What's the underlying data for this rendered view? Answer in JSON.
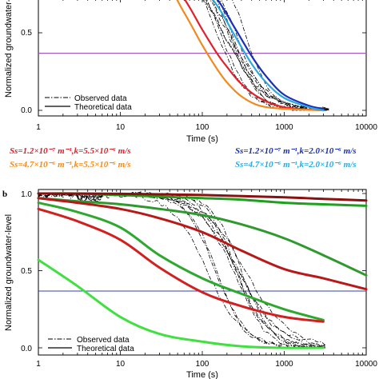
{
  "chart_data": [
    {
      "type": "line",
      "panel": "",
      "xlabel": "Time (s)",
      "ylabel": "Normalized groundwater-level",
      "xscale": "log",
      "xlim": [
        1,
        10000
      ],
      "ylim": [
        0,
        1
      ],
      "x_ticks": [
        "1",
        "10",
        "100",
        "1000",
        "10000"
      ],
      "y_ticks": [
        "0.0",
        "0.5"
      ],
      "reference_line": {
        "y": 0.368,
        "color": "#a05ab4"
      },
      "legend": {
        "placement": "bottom-left",
        "entries": [
          {
            "label": "Observed data",
            "style": "dash-dot"
          },
          {
            "label": "Theoretical data",
            "style": "solid"
          }
        ]
      },
      "observed_color": "#000000",
      "series": [
        {
          "name": "Ss=1.2×10⁻⁷ m⁻¹,k=5.5×10⁻⁶ m/s",
          "color": "#e0202a",
          "x": [
            10,
            30,
            60,
            100,
            150,
            200,
            300,
            500,
            1000,
            3000
          ],
          "y": [
            1.0,
            0.92,
            0.72,
            0.52,
            0.37,
            0.28,
            0.17,
            0.08,
            0.02,
            0.0
          ]
        },
        {
          "name": "Ss=4.7×10⁻⁶ m⁻¹,k=5.5×10⁻⁶ m/s",
          "color": "#f08a1e",
          "x": [
            10,
            30,
            60,
            100,
            150,
            200,
            300,
            500,
            1000,
            3000
          ],
          "y": [
            1.0,
            0.88,
            0.63,
            0.42,
            0.27,
            0.18,
            0.09,
            0.03,
            0.01,
            0.0
          ]
        },
        {
          "name": "Ss=1.2×10⁻⁷ m⁻¹,k=2.0×10⁻⁶ m/s",
          "color": "#1a2fb8",
          "x": [
            30,
            80,
            150,
            250,
            400,
            600,
            1000,
            2000,
            3000
          ],
          "y": [
            1.0,
            0.86,
            0.72,
            0.53,
            0.35,
            0.22,
            0.1,
            0.03,
            0.01
          ]
        },
        {
          "name": "Ss=4.7×10⁻⁶ m⁻¹,k=2.0×10⁻⁶ m/s",
          "color": "#2aa8e0",
          "x": [
            30,
            80,
            150,
            250,
            400,
            600,
            1000,
            2000,
            3000
          ],
          "y": [
            1.0,
            0.84,
            0.68,
            0.48,
            0.3,
            0.18,
            0.08,
            0.02,
            0.0
          ]
        }
      ]
    },
    {
      "type": "line",
      "panel": "b",
      "xlabel": "Time (s)",
      "ylabel": "Normalized groundwater-level",
      "xscale": "log",
      "xlim": [
        1,
        10000
      ],
      "ylim": [
        0,
        1
      ],
      "x_ticks": [
        "1",
        "10",
        "100",
        "1000",
        "10000"
      ],
      "y_ticks": [
        "0.0",
        "0.5",
        "1.0"
      ],
      "reference_line": {
        "y": 0.368,
        "color": "#3040b0"
      },
      "legend": {
        "placement": "bottom-left",
        "entries": [
          {
            "label": "Observed data",
            "style": "dash-dot"
          },
          {
            "label": "Theoretical data",
            "style": "solid"
          }
        ]
      },
      "observed_color": "#000000",
      "series": [
        {
          "color": "#1ea01e",
          "x": [
            1,
            3,
            10,
            30,
            100,
            300,
            1000,
            3000,
            10000
          ],
          "y": [
            1.0,
            1.0,
            0.99,
            0.98,
            0.97,
            0.96,
            0.94,
            0.93,
            0.92
          ]
        },
        {
          "color": "#8b1010",
          "x": [
            1,
            10,
            100,
            1000,
            3000,
            10000
          ],
          "y": [
            1.0,
            0.998,
            0.99,
            0.975,
            0.965,
            0.955
          ]
        },
        {
          "color": "#2e9a2e",
          "x": [
            1,
            3,
            10,
            30,
            100,
            300,
            1000,
            3000,
            10000
          ],
          "y": [
            0.97,
            0.95,
            0.93,
            0.9,
            0.86,
            0.8,
            0.71,
            0.6,
            0.47
          ]
        },
        {
          "color": "#b81818",
          "x": [
            1,
            3,
            10,
            30,
            100,
            300,
            1000,
            3000,
            10000
          ],
          "y": [
            0.97,
            0.94,
            0.9,
            0.84,
            0.75,
            0.63,
            0.51,
            0.45,
            0.38
          ]
        },
        {
          "color": "#2ea82e",
          "x": [
            1,
            3,
            10,
            30,
            100,
            300,
            1000,
            3000
          ],
          "y": [
            0.94,
            0.88,
            0.78,
            0.6,
            0.45,
            0.35,
            0.25,
            0.18
          ]
        },
        {
          "color": "#d02020",
          "x": [
            1,
            3,
            10,
            30,
            100,
            300,
            1000,
            3000
          ],
          "y": [
            0.9,
            0.82,
            0.7,
            0.52,
            0.36,
            0.27,
            0.2,
            0.17
          ]
        },
        {
          "color": "#40e040",
          "x": [
            1,
            3,
            10,
            30,
            100,
            300,
            1000,
            3000
          ],
          "y": [
            0.57,
            0.4,
            0.2,
            0.09,
            0.04,
            0.01,
            0.0,
            0.0
          ]
        }
      ]
    }
  ],
  "param_labels": [
    {
      "text": "Ss=1.2×10⁻⁷ m⁻¹,k=5.5×10⁻⁶ m/s",
      "color": "#e0202a"
    },
    {
      "text": "Ss=4.7×10⁻⁶ m⁻¹,k=5.5×10⁻⁶ m/s",
      "color": "#f08a1e"
    },
    {
      "text": "Ss=1.2×10⁻⁷ m⁻¹,k=2.0×10⁻⁶ m/s",
      "color": "#1a2fb8"
    },
    {
      "text": "Ss=4.7×10⁻⁶ m⁻¹,k=2.0×10⁻⁶ m/s",
      "color": "#2aa8e0"
    }
  ]
}
